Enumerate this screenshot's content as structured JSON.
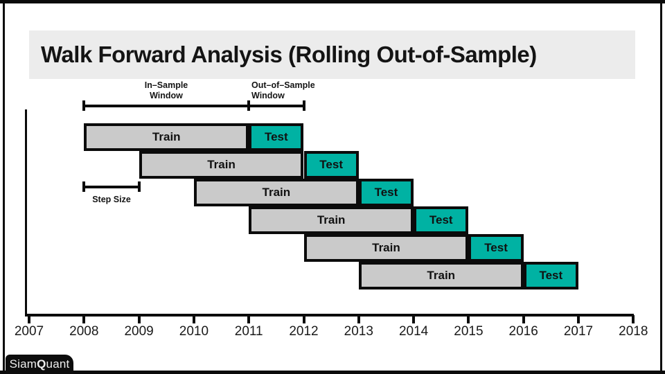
{
  "title": "Walk Forward Analysis (Rolling Out-of-Sample)",
  "annotations": {
    "in_sample_window": [
      "In–Sample",
      "Window"
    ],
    "out_of_sample_window": [
      "Out–of–Sample",
      "Window"
    ],
    "step_size": "Step Size"
  },
  "chart_data": {
    "type": "bar",
    "variant": "walk-forward-gantt",
    "title": "Walk Forward Analysis (Rolling Out-of-Sample)",
    "x_axis": {
      "tick_labels": [
        "2007",
        "2008",
        "2009",
        "2010",
        "2011",
        "2012",
        "2013",
        "2014",
        "2015",
        "2016",
        "2017",
        "2018"
      ],
      "range": [
        2007,
        2018
      ],
      "grid": false
    },
    "rows": [
      {
        "segments": [
          {
            "kind": "train",
            "label": "Train",
            "start": 2008,
            "end": 2011
          },
          {
            "kind": "test",
            "label": "Test",
            "start": 2011,
            "end": 2012
          }
        ]
      },
      {
        "segments": [
          {
            "kind": "train",
            "label": "Train",
            "start": 2009,
            "end": 2012
          },
          {
            "kind": "test",
            "label": "Test",
            "start": 2012,
            "end": 2013
          }
        ]
      },
      {
        "segments": [
          {
            "kind": "train",
            "label": "Train",
            "start": 2010,
            "end": 2013
          },
          {
            "kind": "test",
            "label": "Test",
            "start": 2013,
            "end": 2014
          }
        ]
      },
      {
        "segments": [
          {
            "kind": "train",
            "label": "Train",
            "start": 2011,
            "end": 2014
          },
          {
            "kind": "test",
            "label": "Test",
            "start": 2014,
            "end": 2015
          }
        ]
      },
      {
        "segments": [
          {
            "kind": "train",
            "label": "Train",
            "start": 2012,
            "end": 2015
          },
          {
            "kind": "test",
            "label": "Test",
            "start": 2015,
            "end": 2016
          }
        ]
      },
      {
        "segments": [
          {
            "kind": "train",
            "label": "Train",
            "start": 2013,
            "end": 2016
          },
          {
            "kind": "test",
            "label": "Test",
            "start": 2016,
            "end": 2017
          }
        ]
      }
    ],
    "brackets": {
      "in_sample": {
        "start": 2008,
        "end": 2011
      },
      "out_of_sample": {
        "start": 2011,
        "end": 2012
      },
      "step_size": {
        "start": 2008,
        "end": 2009
      }
    },
    "colors": {
      "train_fill": "#cacaca",
      "test_fill": "#00b2a3",
      "outline": "#0b0b0b",
      "title_band": "#ececec"
    },
    "legend": null
  },
  "branding": {
    "part1": "Siam",
    "q": "Q",
    "part2": "uant"
  }
}
